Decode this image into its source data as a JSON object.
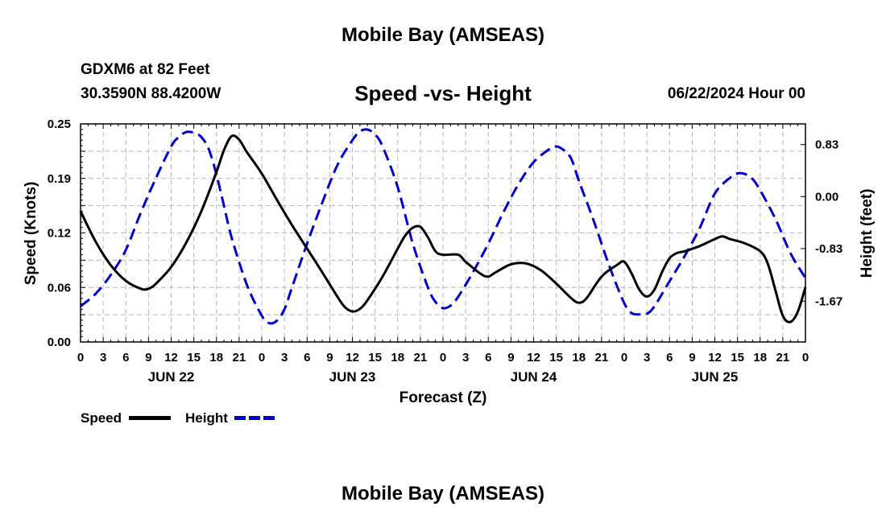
{
  "chart_data": {
    "type": "line",
    "title": "Mobile Bay (AMSEAS)",
    "footer_title": "Mobile Bay (AMSEAS)",
    "subtitle": "Speed -vs- Height",
    "station": "GDXM6 at 82 Feet",
    "location": "30.3590N  88.4200W",
    "date": "06/22/2024 Hour 00",
    "xlabel": "Forecast (Z)",
    "ylabel_left": "Speed (Knots)",
    "ylabel_right": "Height (feet)",
    "xlim": [
      0,
      96
    ],
    "ylim_left": [
      0,
      0.25
    ],
    "ylim_right": [
      -2.32,
      1.16
    ],
    "left_ticks": [
      {
        "v": 0.0,
        "label": "0.00"
      },
      {
        "v": 0.0625,
        "label": "0.06"
      },
      {
        "v": 0.125,
        "label": "0.12"
      },
      {
        "v": 0.1875,
        "label": "0.19"
      },
      {
        "v": 0.25,
        "label": "0.25"
      }
    ],
    "right_ticks": [
      {
        "v": 0.83,
        "label": "0.83"
      },
      {
        "v": 0.0,
        "label": "0.00"
      },
      {
        "v": -0.83,
        "label": "-0.83"
      },
      {
        "v": -1.67,
        "label": "-1.67"
      }
    ],
    "x_tick_labels": [
      "0",
      "3",
      "6",
      "9",
      "12",
      "15",
      "18",
      "21",
      "0",
      "3",
      "6",
      "9",
      "12",
      "15",
      "18",
      "21",
      "0",
      "3",
      "6",
      "9",
      "12",
      "15",
      "18",
      "21",
      "0",
      "3",
      "6",
      "9",
      "12",
      "15",
      "18",
      "21",
      "0"
    ],
    "day_labels": [
      {
        "x": 12,
        "label": "JUN 22"
      },
      {
        "x": 36,
        "label": "JUN 23"
      },
      {
        "x": 60,
        "label": "JUN 24"
      },
      {
        "x": 84,
        "label": "JUN 25"
      }
    ],
    "grid": true,
    "legend": [
      {
        "name": "Speed",
        "color": "#000000",
        "dash": "solid"
      },
      {
        "name": "Height",
        "color": "#0000cc",
        "dash": "dashed"
      }
    ],
    "series": [
      {
        "name": "Speed",
        "axis": "left",
        "color": "#000000",
        "points": [
          [
            0,
            0.15
          ],
          [
            2,
            0.115
          ],
          [
            4,
            0.088
          ],
          [
            6,
            0.07
          ],
          [
            8,
            0.061
          ],
          [
            9,
            0.061
          ],
          [
            10,
            0.067
          ],
          [
            12,
            0.086
          ],
          [
            14,
            0.114
          ],
          [
            16,
            0.15
          ],
          [
            18,
            0.195
          ],
          [
            19,
            0.22
          ],
          [
            20,
            0.236
          ],
          [
            21,
            0.232
          ],
          [
            22,
            0.218
          ],
          [
            24,
            0.193
          ],
          [
            26,
            0.163
          ],
          [
            28,
            0.134
          ],
          [
            30,
            0.107
          ],
          [
            32,
            0.08
          ],
          [
            34,
            0.052
          ],
          [
            35,
            0.04
          ],
          [
            36,
            0.035
          ],
          [
            37,
            0.038
          ],
          [
            38,
            0.048
          ],
          [
            40,
            0.075
          ],
          [
            42,
            0.107
          ],
          [
            43,
            0.122
          ],
          [
            44,
            0.131
          ],
          [
            45,
            0.132
          ],
          [
            46,
            0.12
          ],
          [
            47,
            0.104
          ],
          [
            48,
            0.1
          ],
          [
            50,
            0.1
          ],
          [
            51,
            0.092
          ],
          [
            53,
            0.078
          ],
          [
            54,
            0.075
          ],
          [
            55,
            0.08
          ],
          [
            57,
            0.089
          ],
          [
            59,
            0.09
          ],
          [
            61,
            0.082
          ],
          [
            63,
            0.067
          ],
          [
            65,
            0.05
          ],
          [
            66,
            0.045
          ],
          [
            67,
            0.05
          ],
          [
            69,
            0.075
          ],
          [
            71,
            0.088
          ],
          [
            72,
            0.092
          ],
          [
            73,
            0.078
          ],
          [
            74,
            0.06
          ],
          [
            75,
            0.052
          ],
          [
            76,
            0.06
          ],
          [
            77,
            0.08
          ],
          [
            78,
            0.096
          ],
          [
            79,
            0.102
          ],
          [
            80,
            0.104
          ],
          [
            82,
            0.11
          ],
          [
            84,
            0.118
          ],
          [
            85,
            0.121
          ],
          [
            86,
            0.118
          ],
          [
            88,
            0.113
          ],
          [
            90,
            0.104
          ],
          [
            91,
            0.09
          ],
          [
            92,
            0.06
          ],
          [
            93,
            0.03
          ],
          [
            94,
            0.023
          ],
          [
            95,
            0.035
          ],
          [
            96,
            0.063
          ]
        ]
      },
      {
        "name": "Height",
        "axis": "right",
        "color": "#0000cc",
        "points": [
          [
            0,
            -1.75
          ],
          [
            2,
            -1.55
          ],
          [
            4,
            -1.25
          ],
          [
            6,
            -0.85
          ],
          [
            8,
            -0.25
          ],
          [
            10,
            0.3
          ],
          [
            12,
            0.8
          ],
          [
            13,
            0.95
          ],
          [
            14,
            1.03
          ],
          [
            15,
            1.02
          ],
          [
            16,
            0.95
          ],
          [
            17,
            0.75
          ],
          [
            18,
            0.35
          ],
          [
            19,
            -0.15
          ],
          [
            20,
            -0.65
          ],
          [
            22,
            -1.4
          ],
          [
            24,
            -1.9
          ],
          [
            25,
            -2.02
          ],
          [
            26,
            -1.98
          ],
          [
            27,
            -1.8
          ],
          [
            28,
            -1.45
          ],
          [
            30,
            -0.75
          ],
          [
            32,
            -0.1
          ],
          [
            34,
            0.5
          ],
          [
            36,
            0.9
          ],
          [
            37,
            1.04
          ],
          [
            38,
            1.07
          ],
          [
            39,
            0.99
          ],
          [
            40,
            0.8
          ],
          [
            42,
            0.15
          ],
          [
            44,
            -0.75
          ],
          [
            46,
            -1.45
          ],
          [
            47,
            -1.68
          ],
          [
            48,
            -1.78
          ],
          [
            49,
            -1.74
          ],
          [
            50,
            -1.6
          ],
          [
            52,
            -1.2
          ],
          [
            54,
            -0.75
          ],
          [
            56,
            -0.25
          ],
          [
            58,
            0.2
          ],
          [
            60,
            0.55
          ],
          [
            62,
            0.75
          ],
          [
            63,
            0.8
          ],
          [
            64,
            0.74
          ],
          [
            65,
            0.6
          ],
          [
            66,
            0.25
          ],
          [
            68,
            -0.4
          ],
          [
            70,
            -1.1
          ],
          [
            72,
            -1.7
          ],
          [
            73,
            -1.86
          ],
          [
            74,
            -1.88
          ],
          [
            75,
            -1.87
          ],
          [
            76,
            -1.75
          ],
          [
            78,
            -1.35
          ],
          [
            80,
            -0.95
          ],
          [
            82,
            -0.5
          ],
          [
            84,
            0.05
          ],
          [
            86,
            0.3
          ],
          [
            87,
            0.37
          ],
          [
            88,
            0.36
          ],
          [
            89,
            0.28
          ],
          [
            90,
            0.1
          ],
          [
            92,
            -0.35
          ],
          [
            94,
            -0.9
          ],
          [
            96,
            -1.3
          ]
        ]
      }
    ]
  }
}
